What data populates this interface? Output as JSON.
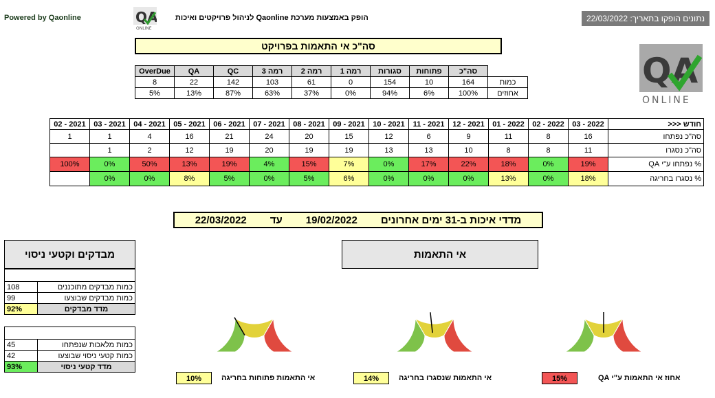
{
  "header": {
    "powered_by": "Powered by Qaonline",
    "produced_by": "הופק באמצעות מערכת Qaonline לניהול פרויקטים ואיכות",
    "date_label": "נתונים הופקו בתאריך: 22/03/2022",
    "logo_text": "QA",
    "logo_sub": "ONLINE"
  },
  "summary": {
    "title": "סה\"כ אי התאמות בפרויקט",
    "headers": [
      "OverDue",
      "QA",
      "QC",
      "רמה 3",
      "רמה 2",
      "רמה 1",
      "סגורות",
      "פתוחות",
      "סה\"כ"
    ],
    "rows": [
      {
        "label": "כמות",
        "values": [
          "8",
          "22",
          "142",
          "103",
          "61",
          "0",
          "154",
          "10",
          "164"
        ]
      },
      {
        "label": "אחוזים",
        "values": [
          "5%",
          "13%",
          "87%",
          "63%",
          "37%",
          "0%",
          "94%",
          "6%",
          "100%"
        ]
      }
    ]
  },
  "monthly": {
    "corner": "חודש <<<",
    "months": [
      "02 - 2021",
      "03 - 2021",
      "04 - 2021",
      "05 - 2021",
      "06 - 2021",
      "07 - 2021",
      "08 - 2021",
      "09 - 2021",
      "10 - 2021",
      "11 - 2021",
      "12 - 2021",
      "01 - 2022",
      "02 - 2022",
      "03 - 2022"
    ],
    "rows": [
      {
        "label": "סה\"כ נפתחו",
        "values": [
          "1",
          "1",
          "4",
          "16",
          "21",
          "24",
          "20",
          "15",
          "12",
          "6",
          "9",
          "11",
          "8",
          "16"
        ],
        "colors": [
          "",
          "",
          "",
          "",
          "",
          "",
          "",
          "",
          "",
          "",
          "",
          "",
          "",
          ""
        ]
      },
      {
        "label": "סה\"כ נסגרו",
        "values": [
          "",
          "1",
          "2",
          "12",
          "19",
          "20",
          "19",
          "19",
          "13",
          "13",
          "10",
          "8",
          "8",
          "11"
        ],
        "colors": [
          "",
          "",
          "",
          "",
          "",
          "",
          "",
          "",
          "",
          "",
          "",
          "",
          "",
          ""
        ]
      },
      {
        "label": "% נפתחו ע\"י QA",
        "values": [
          "100%",
          "0%",
          "50%",
          "13%",
          "19%",
          "4%",
          "15%",
          "7%",
          "0%",
          "17%",
          "22%",
          "18%",
          "0%",
          "19%"
        ],
        "colors": [
          "r",
          "g",
          "r",
          "r",
          "r",
          "g",
          "r",
          "y",
          "g",
          "r",
          "r",
          "r",
          "g",
          "r"
        ]
      },
      {
        "label": "% נסגרו בחריגה",
        "values": [
          "",
          "0%",
          "0%",
          "8%",
          "5%",
          "0%",
          "5%",
          "6%",
          "0%",
          "0%",
          "0%",
          "13%",
          "0%",
          "18%"
        ],
        "colors": [
          "",
          "g",
          "g",
          "y",
          "g",
          "g",
          "g",
          "y",
          "g",
          "g",
          "g",
          "y",
          "g",
          "y"
        ]
      }
    ]
  },
  "period": {
    "label": "מדדי איכות ב-31 ימים אחרונים",
    "from": "19/02/2022",
    "to_label": "עד",
    "to": "22/03/2022"
  },
  "testers": {
    "title": "מבדקים וקטעי ניסוי",
    "rows1": [
      {
        "label": "כמות מבדקים מתוכננים",
        "value": "108"
      },
      {
        "label": "כמות מבדקים שבוצעו",
        "value": "99"
      }
    ],
    "metric1": {
      "label": "מדד מבדקים",
      "value": "92%"
    },
    "rows2": [
      {
        "label": "כמות מלאכות שנפתחו",
        "value": "45"
      },
      {
        "label": "כמות קטעי ניסוי שבוצעו",
        "value": "42"
      }
    ],
    "metric2": {
      "label": "מדד קטעי ניסוי",
      "value": "93%"
    }
  },
  "nonconformance": {
    "title": "אי התאמות",
    "gauges": [
      {
        "label": "אי התאמות פתוחות בחריגה",
        "value": "10%",
        "level": 0.1,
        "color": "#ffff99"
      },
      {
        "label": "אי התאמות שנסגרו בחריגה",
        "value": "14%",
        "level": 0.14,
        "color": "#ffff99"
      },
      {
        "label": "אחוז אי התאמות  ע\"י QA",
        "value": "15%",
        "level": 0.15,
        "color": "#f35555"
      }
    ]
  }
}
